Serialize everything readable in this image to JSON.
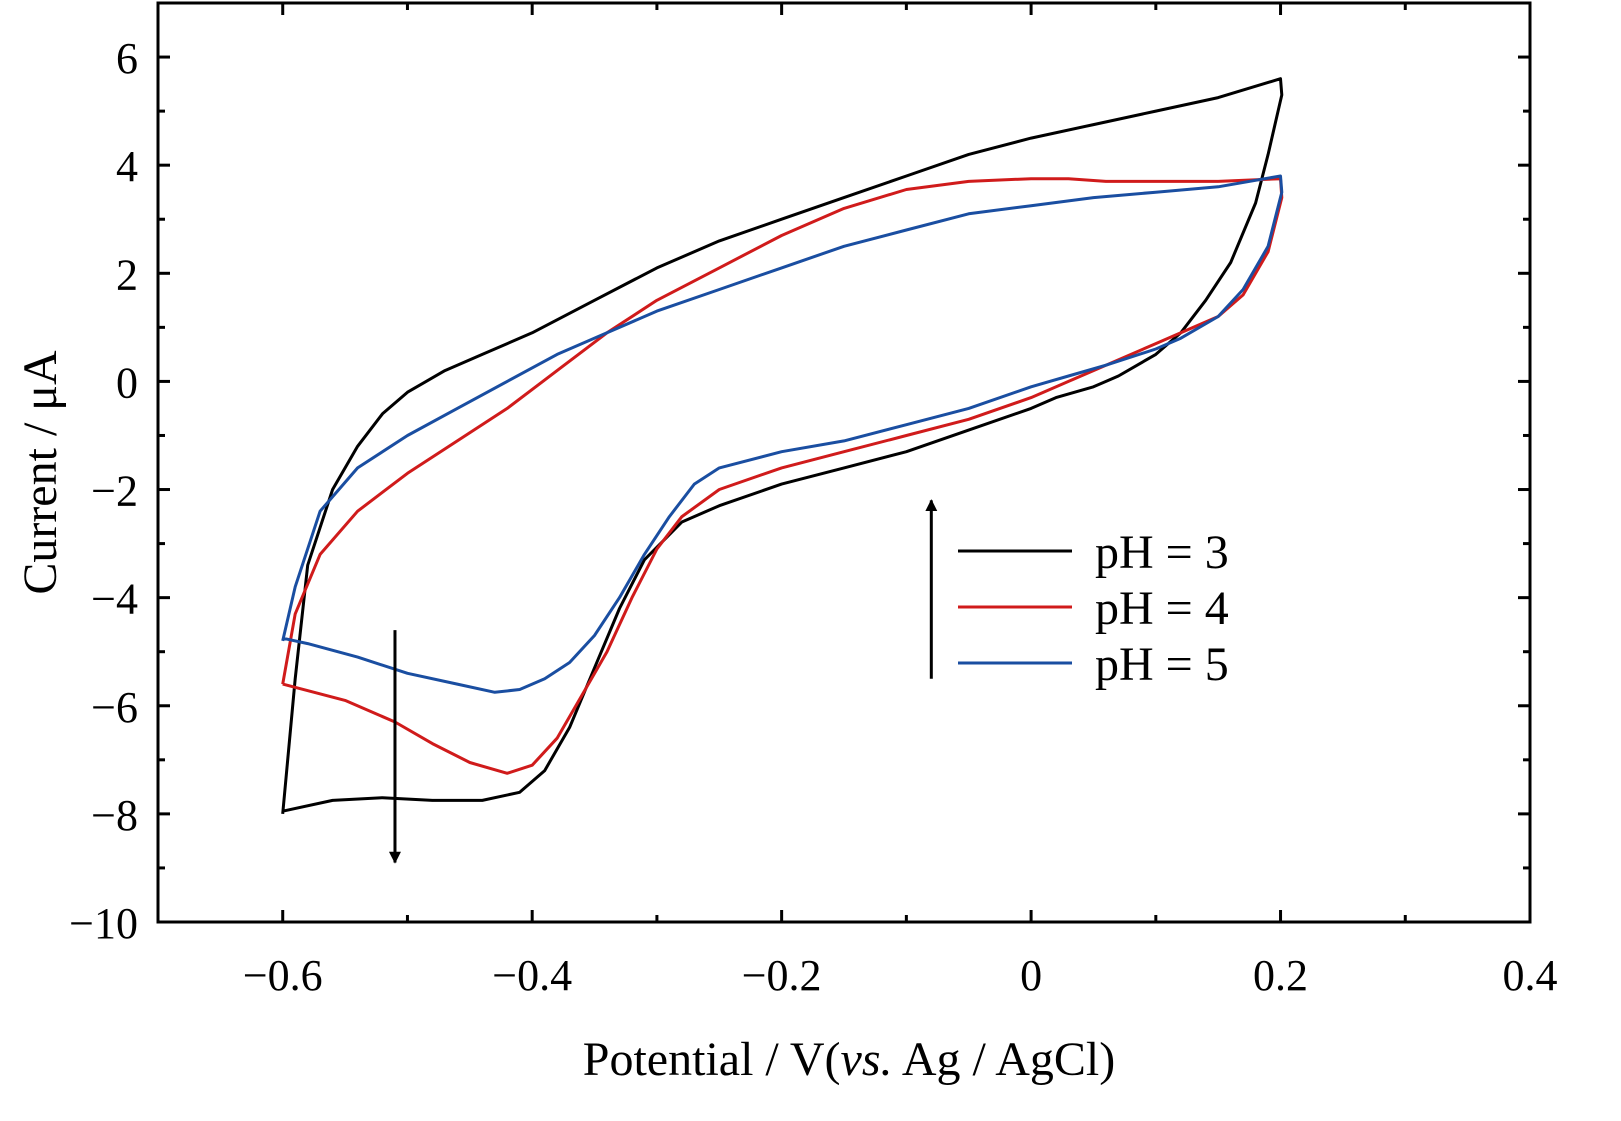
{
  "chart_data": {
    "type": "line",
    "xlabel": "Potential / V(vs. Ag / AgCl)",
    "xlabel_parts": {
      "pre": "Potential / V(",
      "italic": "vs.",
      "post": " Ag / AgCl)"
    },
    "ylabel": "Current / μA",
    "xlim": [
      -0.7,
      0.4
    ],
    "ylim": [
      -10,
      7
    ],
    "x_ticks": [
      -0.6,
      -0.4,
      -0.2,
      0,
      0.2,
      0.4
    ],
    "x_tick_labels": [
      "−0.6",
      "−0.4",
      "−0.2",
      "0",
      "0.2",
      "0.4"
    ],
    "x_minor_ticks": [
      -0.5,
      -0.3,
      -0.1,
      0.1,
      0.3
    ],
    "y_ticks": [
      -10,
      -8,
      -6,
      -4,
      -2,
      0,
      2,
      4,
      6
    ],
    "y_tick_labels": [
      "−10",
      "−8",
      "−6",
      "−4",
      "−2",
      "0",
      "2",
      "4",
      "6"
    ],
    "y_minor_ticks": [
      -9,
      -7,
      -5,
      -3,
      -1,
      1,
      3,
      5
    ],
    "grid": false,
    "legend_position": "right-middle",
    "series": [
      {
        "name": "pH = 3",
        "color": "#000000",
        "x": [
          -0.6,
          -0.59,
          -0.58,
          -0.56,
          -0.54,
          -0.52,
          -0.5,
          -0.47,
          -0.44,
          -0.4,
          -0.35,
          -0.3,
          -0.25,
          -0.2,
          -0.15,
          -0.1,
          -0.05,
          0,
          0.05,
          0.1,
          0.15,
          0.2,
          0.201,
          0.19,
          0.18,
          0.16,
          0.14,
          0.12,
          0.1,
          0.07,
          0.05,
          0.02,
          0,
          -0.05,
          -0.1,
          -0.15,
          -0.2,
          -0.25,
          -0.28,
          -0.31,
          -0.33,
          -0.35,
          -0.37,
          -0.39,
          -0.41,
          -0.44,
          -0.48,
          -0.52,
          -0.56,
          -0.6
        ],
        "y": [
          -8.0,
          -5.5,
          -3.4,
          -2.0,
          -1.2,
          -0.6,
          -0.2,
          0.2,
          0.5,
          0.9,
          1.5,
          2.1,
          2.6,
          3.0,
          3.4,
          3.8,
          4.2,
          4.5,
          4.75,
          5.0,
          5.25,
          5.6,
          5.3,
          4.2,
          3.3,
          2.2,
          1.5,
          0.9,
          0.5,
          0.1,
          -0.1,
          -0.3,
          -0.5,
          -0.9,
          -1.3,
          -1.6,
          -1.9,
          -2.3,
          -2.6,
          -3.3,
          -4.2,
          -5.3,
          -6.4,
          -7.2,
          -7.6,
          -7.75,
          -7.75,
          -7.7,
          -7.75,
          -7.95
        ]
      },
      {
        "name": "pH = 4",
        "color": "#d01b1b",
        "x": [
          -0.6,
          -0.59,
          -0.57,
          -0.54,
          -0.5,
          -0.46,
          -0.42,
          -0.38,
          -0.34,
          -0.3,
          -0.25,
          -0.2,
          -0.15,
          -0.1,
          -0.05,
          0,
          0.03,
          0.06,
          0.1,
          0.15,
          0.2,
          0.201,
          0.19,
          0.17,
          0.15,
          0.12,
          0.1,
          0.06,
          0.03,
          0,
          -0.05,
          -0.1,
          -0.15,
          -0.2,
          -0.25,
          -0.28,
          -0.3,
          -0.32,
          -0.34,
          -0.36,
          -0.38,
          -0.4,
          -0.42,
          -0.45,
          -0.48,
          -0.51,
          -0.55,
          -0.6
        ],
        "y": [
          -5.6,
          -4.3,
          -3.2,
          -2.4,
          -1.7,
          -1.1,
          -0.5,
          0.2,
          0.9,
          1.5,
          2.1,
          2.7,
          3.2,
          3.55,
          3.7,
          3.75,
          3.75,
          3.7,
          3.7,
          3.7,
          3.75,
          3.4,
          2.4,
          1.6,
          1.2,
          0.9,
          0.7,
          0.3,
          0.0,
          -0.3,
          -0.7,
          -1.0,
          -1.3,
          -1.6,
          -2.0,
          -2.5,
          -3.1,
          -4.0,
          -5.0,
          -5.8,
          -6.6,
          -7.1,
          -7.25,
          -7.05,
          -6.7,
          -6.3,
          -5.9,
          -5.6
        ]
      },
      {
        "name": "pH = 5",
        "color": "#1a4ea1",
        "x": [
          -0.6,
          -0.59,
          -0.57,
          -0.54,
          -0.5,
          -0.46,
          -0.42,
          -0.38,
          -0.34,
          -0.3,
          -0.25,
          -0.2,
          -0.15,
          -0.1,
          -0.05,
          0,
          0.05,
          0.1,
          0.15,
          0.2,
          0.201,
          0.19,
          0.17,
          0.15,
          0.12,
          0.1,
          0.06,
          0.03,
          0,
          -0.05,
          -0.1,
          -0.15,
          -0.2,
          -0.25,
          -0.27,
          -0.29,
          -0.31,
          -0.33,
          -0.35,
          -0.37,
          -0.39,
          -0.41,
          -0.43,
          -0.46,
          -0.5,
          -0.54,
          -0.58,
          -0.6
        ],
        "y": [
          -4.8,
          -3.8,
          -2.4,
          -1.6,
          -1.0,
          -0.5,
          0.0,
          0.5,
          0.9,
          1.3,
          1.7,
          2.1,
          2.5,
          2.8,
          3.1,
          3.25,
          3.4,
          3.5,
          3.6,
          3.8,
          3.5,
          2.5,
          1.7,
          1.2,
          0.8,
          0.6,
          0.3,
          0.1,
          -0.1,
          -0.5,
          -0.8,
          -1.1,
          -1.3,
          -1.6,
          -1.9,
          -2.5,
          -3.2,
          -4.0,
          -4.7,
          -5.2,
          -5.5,
          -5.7,
          -5.75,
          -5.6,
          -5.4,
          -5.1,
          -4.85,
          -4.75
        ]
      }
    ],
    "annotations": [
      {
        "type": "arrow",
        "direction": "down",
        "x": -0.51,
        "y_from": -4.6,
        "y_to": -8.9
      },
      {
        "type": "arrow",
        "direction": "up",
        "x": -0.08,
        "y_from": -5.5,
        "y_to": -2.2
      }
    ]
  }
}
